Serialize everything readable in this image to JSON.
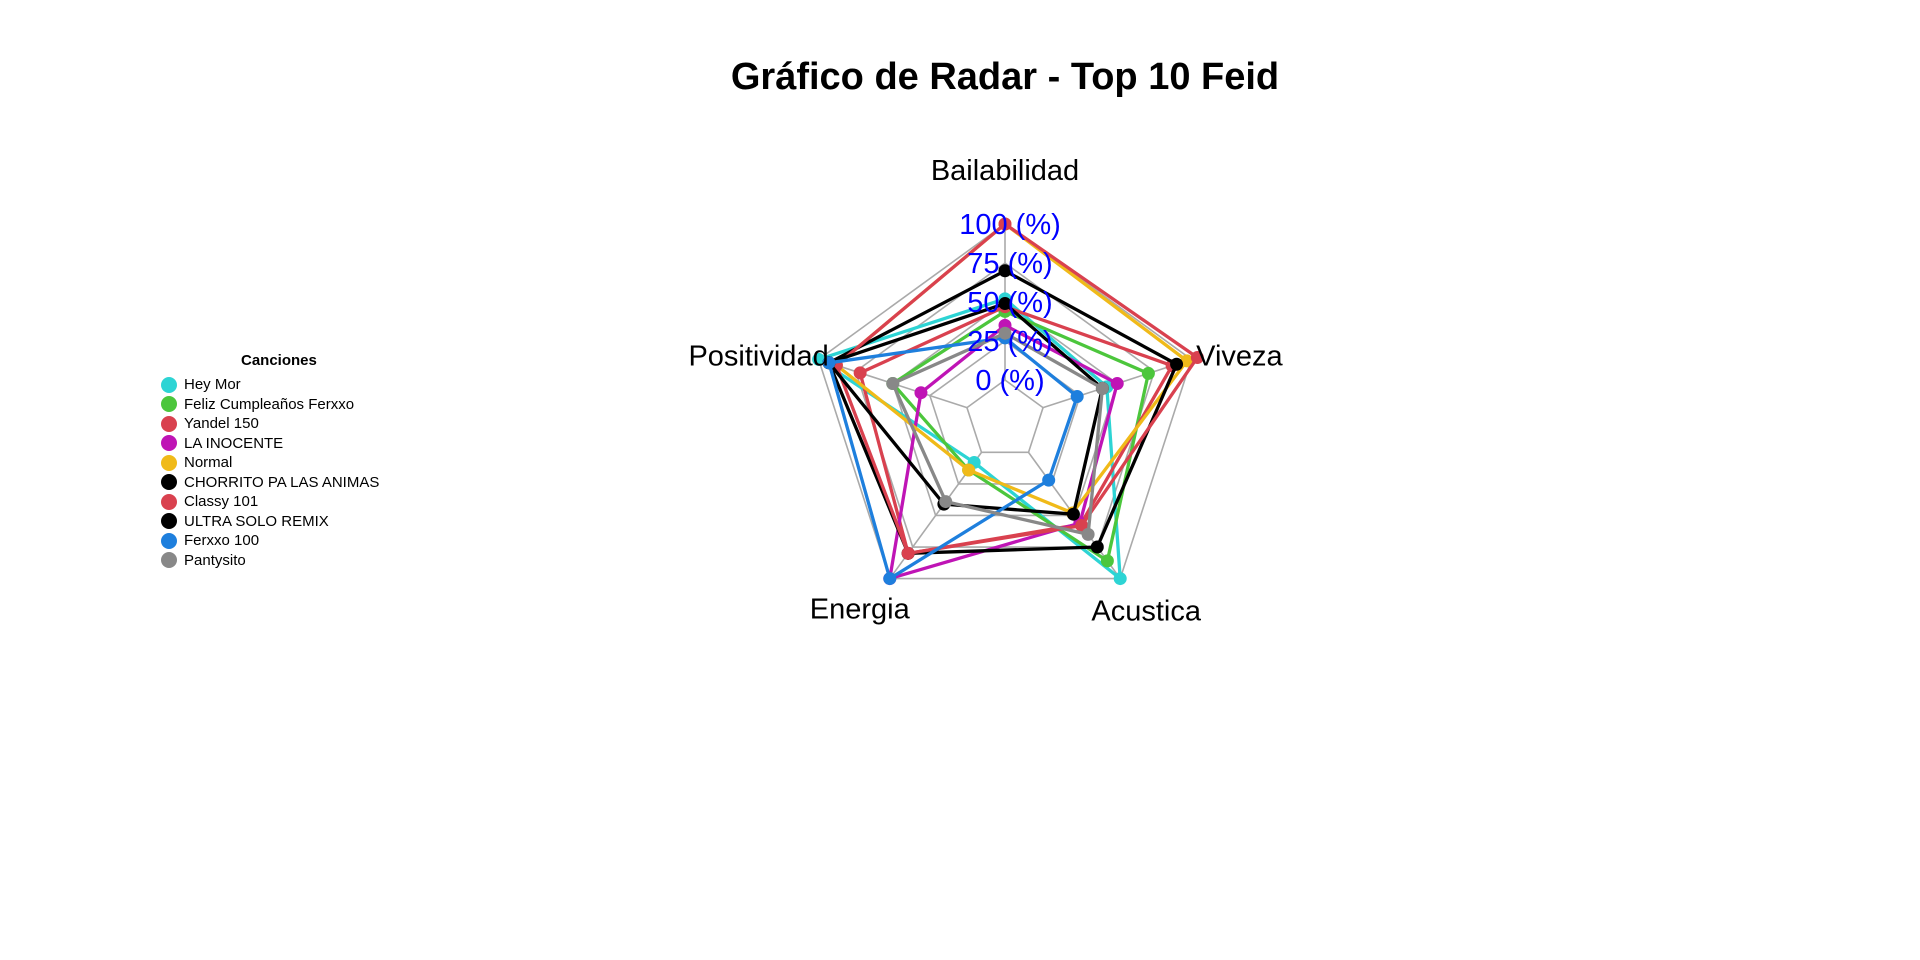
{
  "chart_data": {
    "type": "radar",
    "title": "Gráfico de Radar - Top 10 Feid",
    "legend_title": "Canciones",
    "legend_position": "left",
    "axes": [
      "Bailabilidad",
      "Viveza",
      "Acustica",
      "Energia",
      "Positividad"
    ],
    "range": [
      0,
      100
    ],
    "tick_labels": [
      "0 (%)",
      "25 (%)",
      "50 (%)",
      "75 (%)",
      "100 (%)"
    ],
    "tick_label_color": "#0000FF",
    "grid_color": "#AAAAAA",
    "series": [
      {
        "name": "Hey Mor",
        "color": "#2DD4D4",
        "values": [
          52,
          43,
          100,
          8,
          100
        ]
      },
      {
        "name": "Feliz Cumpleaños Ferxxo",
        "color": "#4CC63C",
        "values": [
          44,
          71,
          86,
          14,
          50
        ]
      },
      {
        "name": "Yandel 150",
        "color": "#D9414F",
        "values": [
          47,
          87,
          57,
          80,
          72
        ]
      },
      {
        "name": "LA INOCENTE",
        "color": "#BF14B5",
        "values": [
          35,
          50,
          56,
          100,
          31
        ]
      },
      {
        "name": "Normal",
        "color": "#F0BA19",
        "values": [
          100,
          97,
          48,
          14,
          88
        ]
      },
      {
        "name": "CHORRITO PA LAS ANIMAS",
        "color": "#000000",
        "values": [
          70,
          90,
          75,
          80,
          93
        ]
      },
      {
        "name": "Classy 101",
        "color": "#D9414F",
        "values": [
          100,
          104,
          58,
          80,
          88
        ]
      },
      {
        "name": "ULTRA SOLO REMIX",
        "color": "#000000",
        "values": [
          49,
          40,
          49,
          41,
          93
        ]
      },
      {
        "name": "Ferxxo 100",
        "color": "#1E7FDD",
        "values": [
          27,
          23,
          22,
          100,
          93
        ]
      },
      {
        "name": "Pantysito",
        "color": "#888888",
        "values": [
          30,
          40,
          65,
          39,
          50
        ]
      }
    ]
  }
}
